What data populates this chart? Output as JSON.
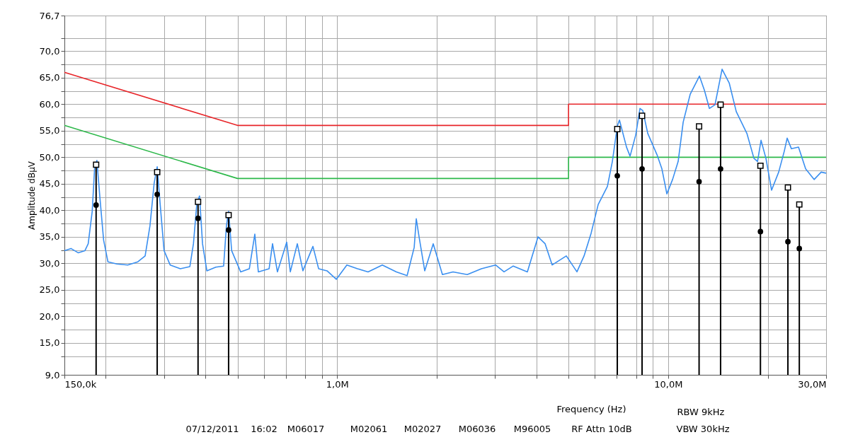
{
  "chart_data": {
    "type": "line",
    "xlabel": "Frequency (Hz)",
    "ylabel": "Amplitude dBµV",
    "log": "x",
    "xlim": [
      150000,
      30000000
    ],
    "ylim": [
      9.0,
      76.7
    ],
    "xticks": [
      {
        "value": 150000,
        "label": "150,0k"
      },
      {
        "value": 200000,
        "label": null
      },
      {
        "value": 300000,
        "label": null
      },
      {
        "value": 400000,
        "label": null
      },
      {
        "value": 500000,
        "label": null
      },
      {
        "value": 600000,
        "label": null
      },
      {
        "value": 700000,
        "label": null
      },
      {
        "value": 800000,
        "label": null
      },
      {
        "value": 900000,
        "label": null
      },
      {
        "value": 1000000,
        "label": "1,0M"
      },
      {
        "value": 2000000,
        "label": null
      },
      {
        "value": 3000000,
        "label": null
      },
      {
        "value": 4000000,
        "label": null
      },
      {
        "value": 5000000,
        "label": null
      },
      {
        "value": 6000000,
        "label": null
      },
      {
        "value": 7000000,
        "label": null
      },
      {
        "value": 8000000,
        "label": null
      },
      {
        "value": 9000000,
        "label": null
      },
      {
        "value": 10000000,
        "label": "10,0M"
      },
      {
        "value": 20000000,
        "label": null
      },
      {
        "value": 30000000,
        "label": "30,0M"
      }
    ],
    "yticks": [
      {
        "value": 9.0,
        "label": "9,0"
      },
      {
        "value": 12.5,
        "label": null
      },
      {
        "value": 15,
        "label": "15,0"
      },
      {
        "value": 17.5,
        "label": null
      },
      {
        "value": 20,
        "label": "20,0"
      },
      {
        "value": 22.5,
        "label": null
      },
      {
        "value": 25,
        "label": "25,0"
      },
      {
        "value": 27.5,
        "label": null
      },
      {
        "value": 30,
        "label": "30,0"
      },
      {
        "value": 32.5,
        "label": null
      },
      {
        "value": 35,
        "label": "35,0"
      },
      {
        "value": 37.5,
        "label": null
      },
      {
        "value": 40,
        "label": "40,0"
      },
      {
        "value": 42.5,
        "label": null
      },
      {
        "value": 45,
        "label": "45,0"
      },
      {
        "value": 47.5,
        "label": null
      },
      {
        "value": 50,
        "label": "50,0"
      },
      {
        "value": 52.5,
        "label": null
      },
      {
        "value": 55,
        "label": "55,0"
      },
      {
        "value": 57.5,
        "label": null
      },
      {
        "value": 60,
        "label": "60,0"
      },
      {
        "value": 62.5,
        "label": null
      },
      {
        "value": 65,
        "label": "65,0"
      },
      {
        "value": 67.5,
        "label": null
      },
      {
        "value": 70,
        "label": "70,0"
      },
      {
        "value": 72.5,
        "label": null
      },
      {
        "value": 76.7,
        "label": "76,7"
      }
    ],
    "grid": true,
    "line_style": "solid",
    "annotations": [
      "RBW 9kHz",
      "07/12/2011",
      "16:02",
      "M06017",
      "M02061",
      "M02027",
      "M06036",
      "M96005",
      "RF Attn 10dB",
      "VBW 30kHz"
    ],
    "series": [
      {
        "type": "line",
        "color": "#e8262a",
        "marker": "none",
        "x": [
          150000,
          500000,
          5000000,
          5000000,
          30000000
        ],
        "values": [
          66,
          56,
          56,
          60,
          60
        ]
      },
      {
        "type": "line",
        "color": "#2db84a",
        "marker": "none",
        "x": [
          150000,
          500000,
          5000000,
          5000000,
          30000000
        ],
        "values": [
          56,
          46,
          46,
          50,
          50
        ]
      },
      {
        "type": "line",
        "color": "#3a8ff0",
        "marker": "none",
        "x": [
          150000,
          157000,
          165000,
          173000,
          177000,
          182000,
          185000,
          188000,
          192000,
          197000,
          203000,
          216000,
          233000,
          250000,
          263000,
          272000,
          280000,
          286000,
          292000,
          300000,
          313000,
          336000,
          359000,
          368000,
          377000,
          384000,
          392000,
          404000,
          430000,
          454000,
          463000,
          470000,
          480000,
          511000,
          543000,
          564000,
          578000,
          623000,
          638000,
          660000,
          704000,
          722000,
          758000,
          788000,
          845000,
          879000,
          932000,
          994000,
          1070000,
          1152000,
          1240000,
          1369000,
          1510000,
          1627000,
          1709000,
          1734000,
          1768000,
          1839000,
          1951000,
          2080000,
          2239000,
          2472000,
          2728000,
          3010000,
          3193000,
          3404000,
          3755000,
          4044000,
          4249000,
          4463000,
          4924000,
          5302000,
          5570000,
          5852000,
          6147000,
          6553000,
          6783000,
          7022000,
          7126000,
          7486000,
          7672000,
          7980000,
          8219000,
          8383000,
          8676000,
          9249000,
          9574000,
          9910000,
          10310000,
          10720000,
          11100000,
          11660000,
          12430000,
          12870000,
          13320000,
          13850000,
          14550000,
          15290000,
          16060000,
          17290000,
          18160000,
          18620000,
          19080000,
          19740000,
          20530000,
          21570000,
          22440000,
          22880000,
          23570000,
          24760000,
          26020000,
          27600000,
          28990000,
          30000000
        ],
        "values": [
          32.4,
          32.8,
          32.0,
          32.4,
          33.7,
          39.8,
          47.8,
          49.4,
          42.4,
          34.4,
          30.3,
          29.9,
          29.7,
          30.3,
          31.4,
          37.1,
          45.1,
          48.2,
          41.1,
          32.4,
          29.7,
          29.0,
          29.4,
          33.7,
          41.4,
          42.7,
          33.7,
          28.6,
          29.3,
          29.5,
          37.1,
          39.8,
          32.4,
          28.4,
          29.0,
          35.5,
          28.4,
          29.0,
          33.7,
          28.4,
          34.0,
          28.4,
          33.7,
          28.6,
          33.2,
          29.0,
          28.6,
          27.0,
          29.7,
          29.0,
          28.4,
          29.7,
          28.4,
          27.7,
          33.0,
          38.4,
          35.0,
          28.6,
          33.7,
          27.9,
          28.4,
          27.9,
          29.0,
          29.7,
          28.4,
          29.5,
          28.4,
          35.0,
          33.7,
          29.7,
          31.4,
          28.4,
          31.4,
          35.7,
          41.1,
          44.5,
          49.2,
          55.9,
          57.0,
          51.9,
          50.2,
          54.2,
          59.2,
          58.8,
          54.5,
          50.5,
          47.8,
          43.1,
          45.8,
          49.2,
          56.6,
          61.9,
          65.3,
          62.6,
          59.2,
          59.9,
          66.6,
          64.0,
          58.6,
          54.5,
          49.8,
          49.2,
          53.2,
          49.8,
          43.8,
          47.2,
          51.2,
          53.6,
          51.6,
          51.9,
          47.8,
          45.8,
          47.2,
          47.0
        ]
      },
      {
        "type": "lollipop",
        "color": "#000000",
        "marker": "square",
        "x": [
          187000,
          286000,
          380000,
          470000,
          7020000,
          8340000,
          12400000,
          14400000,
          19000000,
          23000000,
          24900000
        ],
        "values": [
          48.6,
          47.2,
          41.6,
          39.1,
          55.3,
          57.8,
          55.8,
          59.9,
          48.4,
          44.3,
          41.1
        ]
      },
      {
        "type": "scatter",
        "color": "#000000",
        "marker": "circle",
        "x": [
          187000,
          286000,
          380000,
          470000,
          7020000,
          8340000,
          12400000,
          14400000,
          19000000,
          23000000,
          24900000
        ],
        "values": [
          41.0,
          43.0,
          38.5,
          36.3,
          46.5,
          47.8,
          45.4,
          47.8,
          36.0,
          34.1,
          32.8
        ]
      }
    ]
  }
}
